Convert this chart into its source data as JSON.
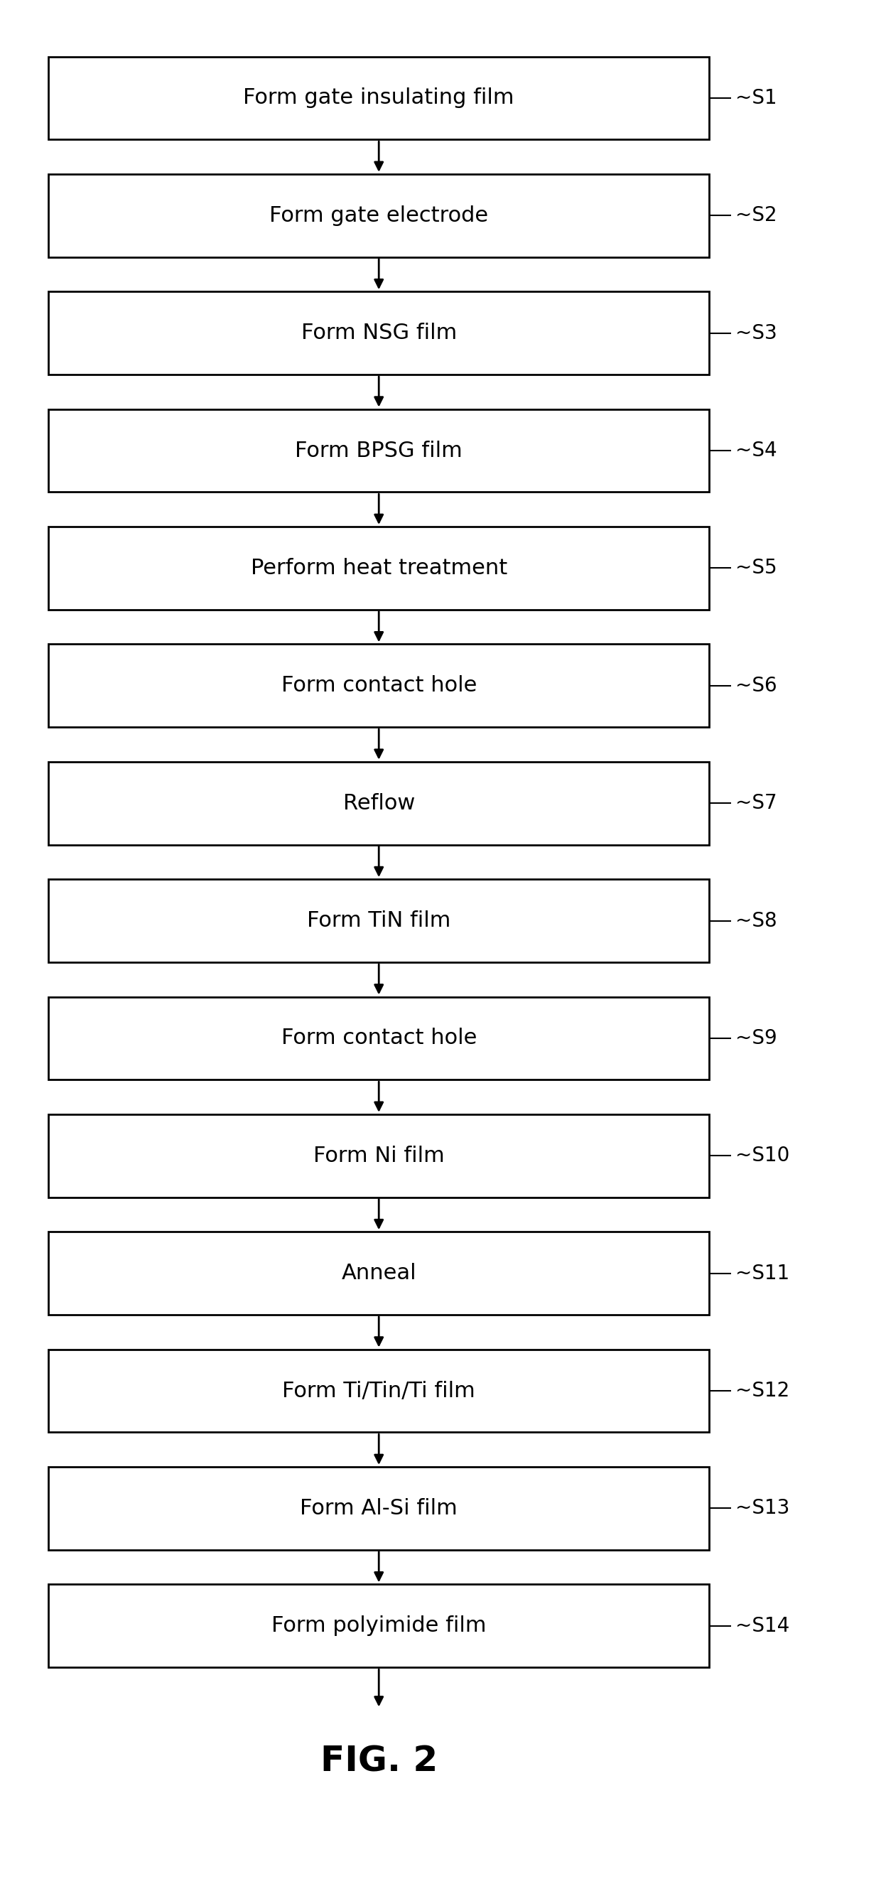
{
  "steps": [
    {
      "label": "Form gate insulating film",
      "step_id": "S1"
    },
    {
      "label": "Form gate electrode",
      "step_id": "S2"
    },
    {
      "label": "Form NSG film",
      "step_id": "S3"
    },
    {
      "label": "Form BPSG film",
      "step_id": "S4"
    },
    {
      "label": "Perform heat treatment",
      "step_id": "S5"
    },
    {
      "label": "Form contact hole",
      "step_id": "S6"
    },
    {
      "label": "Reflow",
      "step_id": "S7"
    },
    {
      "label": "Form TiN film",
      "step_id": "S8"
    },
    {
      "label": "Form contact hole",
      "step_id": "S9"
    },
    {
      "label": "Form Ni film",
      "step_id": "S10"
    },
    {
      "label": "Anneal",
      "step_id": "S11"
    },
    {
      "label": "Form Ti/Tin/Ti film",
      "step_id": "S12"
    },
    {
      "label": "Form Al-Si film",
      "step_id": "S13"
    },
    {
      "label": "Form polyimide film",
      "step_id": "S14"
    }
  ],
  "fig_label": "FIG. 2",
  "bg_color": "#ffffff",
  "box_color": "#ffffff",
  "box_edge_color": "#000000",
  "text_color": "#000000",
  "arrow_color": "#000000",
  "fig_width": 12.4,
  "fig_height": 26.51,
  "label_fontsize": 22,
  "step_fontsize": 20,
  "fig_label_fontsize": 36
}
